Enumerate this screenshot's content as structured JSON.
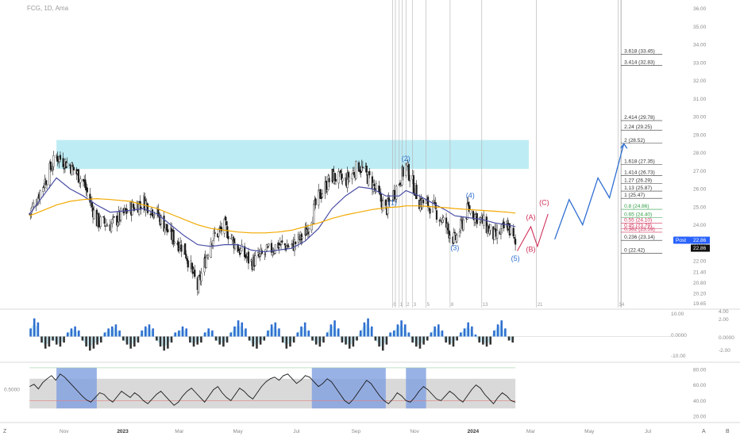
{
  "header": {
    "symbol_line": "FCG, 1D, Ama"
  },
  "colors": {
    "candle": "#1a1a1a",
    "ma_fast": "#4a4fa6",
    "ma_slow": "#f2a900",
    "zone": "#a8e6f0",
    "wave_blue": "#2f6fd0",
    "wave_red": "#d0305a",
    "osc_pos": "#2f6fd0",
    "osc_neg": "#333333",
    "osc_fill_pos": "#8fd3e8",
    "osc_fill_neg": "#bbbbbb",
    "rsi_line": "#1a1a1a",
    "rsi_band": "#d0d0d0",
    "rsi_highlight": "#7f9fe0",
    "fib_green": "#2e9d44",
    "fib_red": "#d0305a",
    "post_badge": "#2962ff",
    "last_badge": "#111111"
  },
  "chart_data": [
    {
      "type": "candlestick",
      "title": "FCG, 1D, Ama",
      "x_ticks": [
        "Nov",
        "2023",
        "Mar",
        "May",
        "Jul",
        "Sep",
        "Nov",
        "2024",
        "Mar",
        "May",
        "Jul"
      ],
      "y_ticks": [
        "36.00",
        "35.00",
        "34.00",
        "33.00",
        "32.00",
        "31.00",
        "30.00",
        "29.00",
        "28.00",
        "27.00",
        "26.00",
        "25.00",
        "24.00",
        "23.00",
        "22.00",
        "21.40",
        "20.80",
        "20.20",
        "19.65"
      ],
      "ylim": [
        19.5,
        36.2
      ],
      "last_price": "22.86",
      "post_label": "Post",
      "post_price": "22.86",
      "resistance_zone": [
        27.1,
        28.7
      ],
      "price_path": [
        {
          "x": "2022-09-26",
          "close": 24.6
        },
        {
          "x": "2022-10-10",
          "close": 26.2
        },
        {
          "x": "2022-10-24",
          "close": 27.8
        },
        {
          "x": "2022-11-07",
          "close": 27.3
        },
        {
          "x": "2022-11-21",
          "close": 26.4
        },
        {
          "x": "2022-12-05",
          "close": 24.2
        },
        {
          "x": "2022-12-19",
          "close": 24.0
        },
        {
          "x": "2023-01-09",
          "close": 24.9
        },
        {
          "x": "2023-01-23",
          "close": 25.3
        },
        {
          "x": "2023-02-06",
          "close": 24.6
        },
        {
          "x": "2023-02-20",
          "close": 23.4
        },
        {
          "x": "2023-03-06",
          "close": 22.7
        },
        {
          "x": "2023-03-20",
          "close": 20.5
        },
        {
          "x": "2023-04-03",
          "close": 23.2
        },
        {
          "x": "2023-04-17",
          "close": 23.9
        },
        {
          "x": "2023-05-01",
          "close": 22.7
        },
        {
          "x": "2023-05-15",
          "close": 21.9
        },
        {
          "x": "2023-05-29",
          "close": 22.4
        },
        {
          "x": "2023-06-12",
          "close": 22.9
        },
        {
          "x": "2023-06-26",
          "close": 22.8
        },
        {
          "x": "2023-07-10",
          "close": 23.5
        },
        {
          "x": "2023-07-24",
          "close": 25.5
        },
        {
          "x": "2023-08-07",
          "close": 26.7
        },
        {
          "x": "2023-08-21",
          "close": 26.4
        },
        {
          "x": "2023-09-04",
          "close": 27.3
        },
        {
          "x": "2023-09-18",
          "close": 26.3
        },
        {
          "x": "2023-10-02",
          "close": 24.8
        },
        {
          "x": "2023-10-16",
          "close": 26.4
        },
        {
          "x": "2023-10-23",
          "close": 27.3
        },
        {
          "x": "2023-11-06",
          "close": 25.3
        },
        {
          "x": "2023-11-20",
          "close": 25.0
        },
        {
          "x": "2023-12-04",
          "close": 23.9
        },
        {
          "x": "2023-12-13",
          "close": 23.1
        },
        {
          "x": "2023-12-27",
          "close": 24.9
        },
        {
          "x": "2024-01-10",
          "close": 24.2
        },
        {
          "x": "2024-01-24",
          "close": 23.3
        },
        {
          "x": "2024-02-06",
          "close": 24.0
        },
        {
          "x": "2024-02-14",
          "close": 22.86
        }
      ],
      "moving_averages": [
        {
          "name": "MA fast",
          "values": [
            24.6,
            25.6,
            26.6,
            26.0,
            25.6,
            25.1,
            24.7,
            24.8,
            24.9,
            24.6,
            24.0,
            23.4,
            22.9,
            22.8,
            22.9,
            22.9,
            22.6,
            22.5,
            22.6,
            22.7,
            23.1,
            23.8,
            24.9,
            25.6,
            26.1,
            26.0,
            25.6,
            25.6,
            25.9,
            25.6,
            25.2,
            24.8,
            24.5,
            24.4,
            24.3,
            24.1,
            24.0,
            23.9
          ]
        },
        {
          "name": "MA slow",
          "values": [
            24.5,
            24.8,
            25.1,
            25.3,
            25.4,
            25.45,
            25.4,
            25.3,
            25.1,
            24.9,
            24.6,
            24.3,
            24.0,
            23.8,
            23.7,
            23.6,
            23.55,
            23.55,
            23.6,
            23.7,
            23.9,
            24.1,
            24.35,
            24.55,
            24.7,
            24.85,
            24.95,
            25.0,
            25.05,
            25.05,
            25.0,
            24.95,
            24.9,
            24.85,
            24.8,
            24.75,
            24.7,
            24.65
          ]
        }
      ],
      "fib_levels": [
        {
          "label": "3.618 (33.45)",
          "value": 33.45
        },
        {
          "label": "3.414 (32.83)",
          "value": 32.83
        },
        {
          "label": "2.414 (29.78)",
          "value": 29.78
        },
        {
          "label": "2.24 (29.25)",
          "value": 29.25
        },
        {
          "label": "2 (28.52)",
          "value": 28.52
        },
        {
          "label": "1.618 (27.35)",
          "value": 27.35
        },
        {
          "label": "1.414 (26.73)",
          "value": 26.73
        },
        {
          "label": "1.27 (26.29)",
          "value": 26.29
        },
        {
          "label": "1.13 (25.87)",
          "value": 25.87
        },
        {
          "label": "1 (25.47)",
          "value": 25.47
        },
        {
          "label": "0.8 (24.86)",
          "value": 24.86
        },
        {
          "label": "0.65 (24.40)",
          "value": 24.4
        },
        {
          "label": "0.55 (24.10)",
          "value": 24.1
        },
        {
          "label": "0.45 (23.79)",
          "value": 23.79
        },
        {
          "label": "0.382 (23.59)",
          "value": 23.59
        },
        {
          "label": "0.236 (23.14)",
          "value": 23.14
        },
        {
          "label": "0 (22.42)",
          "value": 22.42
        }
      ],
      "wave_labels": [
        {
          "label": "(1)",
          "x": "2023-10-09",
          "y": 25.1,
          "color": "blue"
        },
        {
          "label": "(2)",
          "x": "2023-10-23",
          "y": 27.55,
          "color": "blue"
        },
        {
          "label": "(3)",
          "x": "2023-12-13",
          "y": 22.6,
          "color": "blue"
        },
        {
          "label": "(4)",
          "x": "2023-12-29",
          "y": 25.5,
          "color": "blue"
        },
        {
          "label": "(5)",
          "x": "2024-02-14",
          "y": 22.0,
          "color": "blue"
        },
        {
          "label": "(A)",
          "x": "2024-03-01",
          "y": 24.3,
          "color": "red"
        },
        {
          "label": "(B)",
          "x": "2024-03-01",
          "y": 22.5,
          "color": "red"
        },
        {
          "label": "(C)",
          "x": "2024-03-15",
          "y": 25.1,
          "color": "red"
        }
      ],
      "projection_red": [
        {
          "x": "2024-02-16",
          "y": 22.55
        },
        {
          "x": "2024-03-01",
          "y": 23.9
        },
        {
          "x": "2024-03-08",
          "y": 22.8
        },
        {
          "x": "2024-03-19",
          "y": 24.6
        }
      ],
      "projection_blue": [
        {
          "x": "2024-03-26",
          "y": 23.2
        },
        {
          "x": "2024-04-10",
          "y": 25.4
        },
        {
          "x": "2024-04-24",
          "y": 24.0
        },
        {
          "x": "2024-05-10",
          "y": 26.6
        },
        {
          "x": "2024-05-22",
          "y": 25.5
        },
        {
          "x": "2024-06-06",
          "y": 28.5
        }
      ],
      "time_markers": [
        "0",
        "1",
        "2",
        "3",
        "5",
        "8",
        "13",
        "21",
        "34"
      ]
    },
    {
      "type": "bar",
      "title": "",
      "y_ticks_right": [
        "10.00",
        "4.00",
        "2.00",
        "0.0000",
        "0.0000",
        "-2.00",
        "-10.00"
      ],
      "ylim": [
        -12,
        12
      ],
      "values": [
        4,
        9,
        7,
        -3,
        -6,
        -5,
        -2,
        -4,
        -5,
        -3,
        2,
        4,
        5,
        3,
        -2,
        -5,
        -7,
        -6,
        -4,
        -3,
        2,
        4,
        5,
        6,
        3,
        -2,
        -4,
        -6,
        -5,
        -3,
        3,
        5,
        6,
        4,
        -2,
        -5,
        -7,
        -6,
        -3,
        2,
        3,
        5,
        4,
        -3,
        -5,
        -4,
        -3,
        2,
        4,
        3,
        -2,
        -4,
        -5,
        -3,
        2,
        5,
        8,
        7,
        4,
        -2,
        -5,
        -6,
        -4,
        -2,
        3,
        6,
        7,
        4,
        -3,
        -6,
        -5,
        -3,
        2,
        5,
        7,
        3,
        -2,
        -4,
        -5,
        -3,
        2,
        6,
        8,
        4,
        -3,
        -4,
        -6,
        -5,
        -2,
        3,
        7,
        9,
        5,
        -2,
        -5,
        -7,
        -4,
        2,
        3,
        6,
        8,
        6,
        2,
        -3,
        -5,
        -6,
        -4,
        -2,
        2,
        5,
        6,
        3,
        -3,
        -4,
        -5,
        -2,
        2,
        4,
        7,
        5,
        1,
        -3,
        -4,
        -5,
        -4,
        3,
        6,
        8,
        4,
        -2,
        -3
      ]
    },
    {
      "type": "line",
      "title": "",
      "y_ticks_right": [
        "80.00",
        "60.00",
        "40.00",
        "20.00"
      ],
      "left_label": "0.5000",
      "ylim": [
        15,
        85
      ],
      "band": [
        30,
        68
      ],
      "highlight_ranges": [
        [
          "2022-10-24",
          "2022-12-05"
        ],
        [
          "2023-07-17",
          "2023-10-02"
        ],
        [
          "2023-10-23",
          "2023-11-13"
        ]
      ],
      "values": [
        58,
        61,
        55,
        63,
        68,
        72,
        66,
        74,
        70,
        64,
        58,
        52,
        46,
        41,
        38,
        44,
        50,
        48,
        42,
        38,
        45,
        52,
        48,
        44,
        50,
        46,
        40,
        36,
        42,
        48,
        52,
        46,
        40,
        34,
        38,
        46,
        52,
        56,
        50,
        44,
        38,
        46,
        54,
        58,
        50,
        44,
        40,
        48,
        56,
        52,
        46,
        42,
        50,
        58,
        64,
        68,
        70,
        66,
        72,
        74,
        68,
        62,
        66,
        72,
        70,
        64,
        58,
        62,
        68,
        64,
        56,
        48,
        40,
        36,
        42,
        50,
        58,
        66,
        62,
        54,
        46,
        40,
        36,
        42,
        50,
        46,
        40,
        38,
        44,
        52,
        58,
        54,
        48,
        42,
        40,
        46,
        52,
        48,
        42,
        38,
        46,
        54,
        60,
        56,
        48,
        42,
        36,
        44,
        50,
        46,
        40,
        38
      ]
    }
  ],
  "x_axis_extra": {
    "left": "Z",
    "right_a": "A",
    "right_b": "B"
  }
}
